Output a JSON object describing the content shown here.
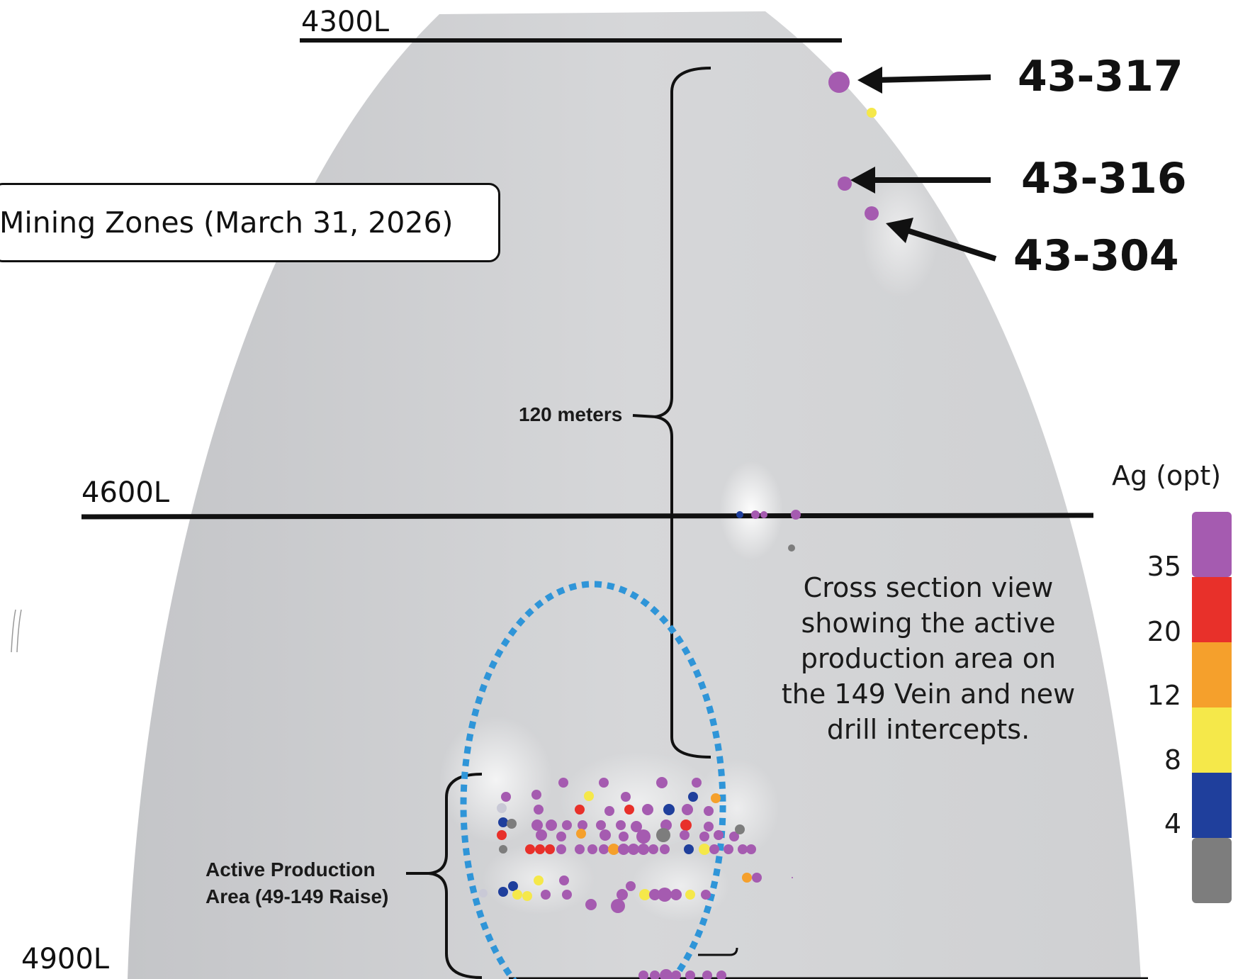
{
  "title": "Mining Zones (March 31, 2026)",
  "levels": [
    "4300L",
    "4600L",
    "4900L"
  ],
  "holes": [
    "43-317",
    "43-316",
    "43-304"
  ],
  "span_label": "120 meters",
  "active_area_label": [
    "Active Production",
    "Area (49-149 Raise)"
  ],
  "description": [
    "Cross section view",
    "showing the active",
    "production area on",
    "the 149 Vein and new",
    "drill intercepts."
  ],
  "legend": {
    "title": "Ag (opt)",
    "ticks": [
      "35",
      "20",
      "12",
      "8",
      "4"
    ],
    "colors": [
      "#a55bb0",
      "#e8302a",
      "#f5a02c",
      "#f5e84a",
      "#1f3f9c",
      "#7d7d7d"
    ]
  },
  "colors": {
    "background": "#ffffff",
    "section_fill": "#d3d4d6",
    "line": "#111111",
    "ellipse": "#2f95d8",
    "purple": "#a55bb0",
    "red": "#e8302a",
    "orange": "#f5a02c",
    "yellow": "#f5e84a",
    "blue": "#1f3f9c",
    "gray": "#7d7d7d"
  }
}
